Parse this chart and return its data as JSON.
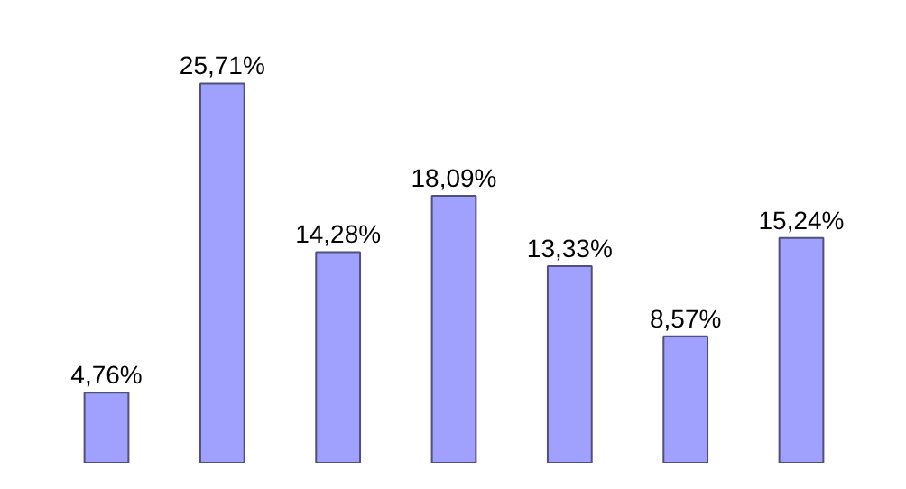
{
  "chart_data": {
    "type": "bar",
    "categories": [
      null,
      null,
      null,
      null,
      null,
      null,
      null
    ],
    "values": [
      4.76,
      25.71,
      14.28,
      18.09,
      13.33,
      8.57,
      15.24
    ],
    "value_labels": [
      "4,76%",
      "25,71%",
      "14,28%",
      "18,09%",
      "13,33%",
      "8,57%",
      "15,24%"
    ],
    "color": "#a0a0ff"
  }
}
